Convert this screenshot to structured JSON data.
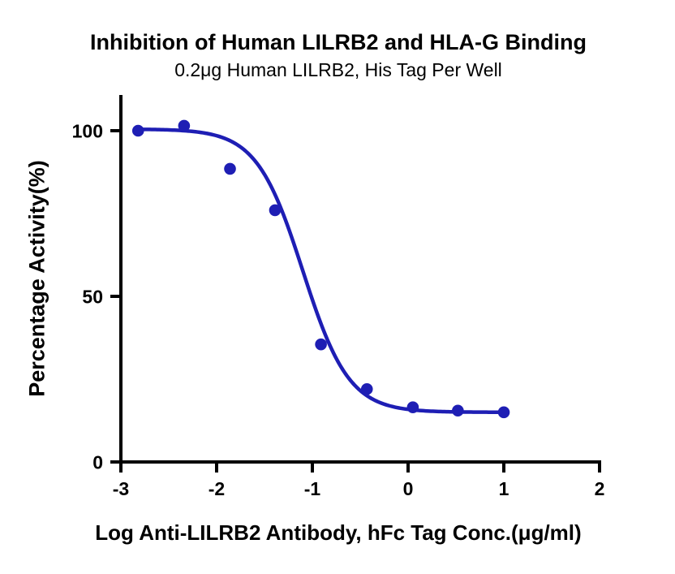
{
  "chart_data": {
    "type": "scatter",
    "title": "Inhibition of Human LILRB2 and HLA-G Binding",
    "subtitle": "0.2μg Human LILRB2, His Tag Per Well",
    "xlabel": "Log Anti-LILRB2 Antibody, hFc Tag Conc.(μg/ml)",
    "ylabel": "Percentage Activity(%)",
    "x": [
      -2.82,
      -2.34,
      -1.86,
      -1.39,
      -0.91,
      -0.43,
      0.05,
      0.52,
      1.0
    ],
    "y": [
      100,
      101.5,
      88.5,
      76,
      35.5,
      22,
      16.5,
      15.5,
      15
    ],
    "xlim": [
      -3,
      2
    ],
    "ylim": [
      0,
      100
    ],
    "xticks": [
      -3,
      -2,
      -1,
      0,
      1,
      2
    ],
    "yticks": [
      0,
      50,
      100
    ],
    "curve_fit": {
      "model": "4PL",
      "top": 100.5,
      "bottom": 15,
      "log_ic50": -1.1,
      "hill_slope": 1.8,
      "curve_x_start": -2.82,
      "curve_x_end": 1.0
    },
    "series_color": "#1e1eb4",
    "axis_color": "#000000",
    "grid": false,
    "legend": "none",
    "marker": "circle",
    "marker_radius_px": 7.3
  }
}
